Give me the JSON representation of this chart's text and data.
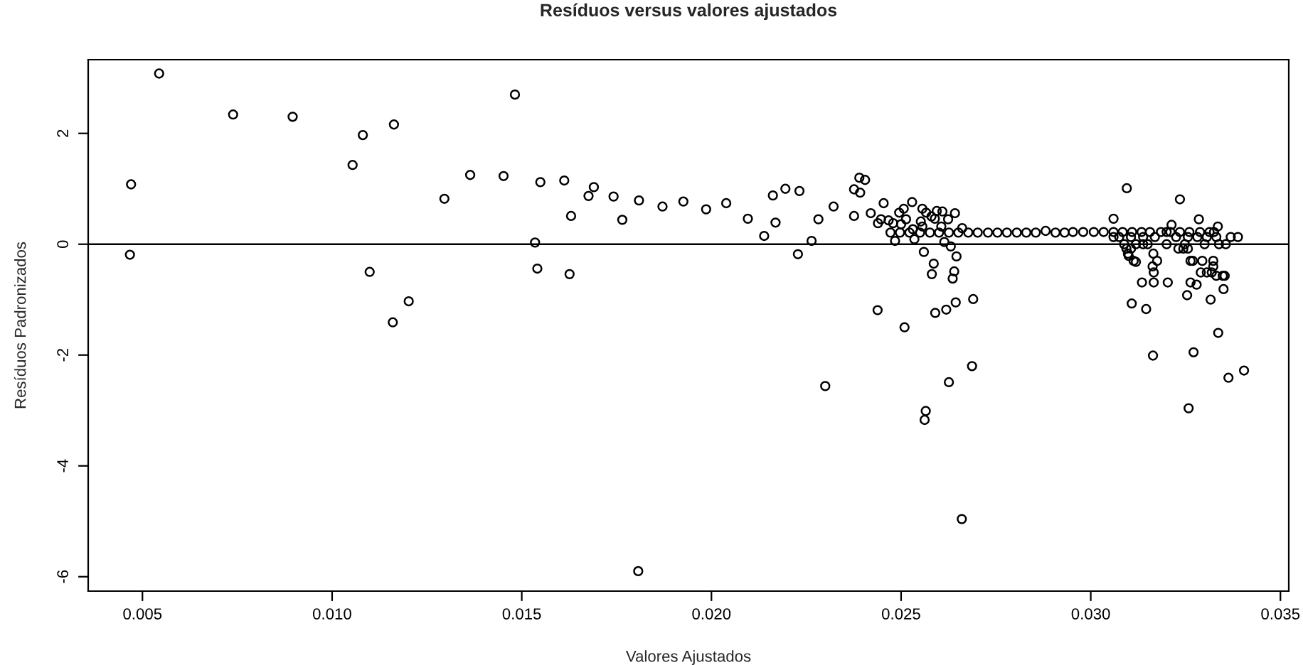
{
  "chart_data": {
    "type": "scatter",
    "title": "Resíduos versus valores ajustados",
    "xlabel": "Valores Ajustados",
    "ylabel": "Resíduos Padronizados",
    "color": "#000000",
    "marker": "circle",
    "grid": false,
    "x": [
      0.00544,
      0.0047,
      0.00467,
      0.00739,
      0.00896,
      0.01081,
      0.01054,
      0.01163,
      0.01099,
      0.01202,
      0.0116,
      0.01296,
      0.01364,
      0.01452,
      0.01482,
      0.01549,
      0.01535,
      0.01541,
      0.01612,
      0.0163,
      0.01626,
      0.01676,
      0.0169,
      0.01742,
      0.01765,
      0.01809,
      0.01807,
      0.01871,
      0.01926,
      0.01986,
      0.02039,
      0.02096,
      0.02139,
      0.02162,
      0.02169,
      0.02195,
      0.02232,
      0.02228,
      0.02264,
      0.02282,
      0.023,
      0.02322,
      0.02376,
      0.0239,
      0.02405,
      0.02392,
      0.02376,
      0.0242,
      0.02454,
      0.02438,
      0.02439,
      0.02447,
      0.02467,
      0.02479,
      0.02472,
      0.02484,
      0.02495,
      0.02507,
      0.025,
      0.02513,
      0.02497,
      0.02509,
      0.02529,
      0.02522,
      0.02531,
      0.02535,
      0.0255,
      0.02552,
      0.02556,
      0.02556,
      0.02566,
      0.02576,
      0.0258,
      0.02589,
      0.02594,
      0.02609,
      0.02606,
      0.026,
      0.02624,
      0.02642,
      0.02626,
      0.02614,
      0.02631,
      0.0256,
      0.02646,
      0.02586,
      0.02581,
      0.0264,
      0.02636,
      0.02661,
      0.02651,
      0.02677,
      0.02702,
      0.02729,
      0.02754,
      0.02779,
      0.02805,
      0.0283,
      0.02855,
      0.02881,
      0.02907,
      0.02931,
      0.0269,
      0.02644,
      0.02619,
      0.0259,
      0.02687,
      0.02626,
      0.02565,
      0.02562,
      0.0266,
      0.02953,
      0.0298,
      0.03008,
      0.03034,
      0.0306,
      0.03084,
      0.03109,
      0.03134,
      0.03156,
      0.03185,
      0.0321,
      0.03235,
      0.0326,
      0.03288,
      0.03313,
      0.032,
      0.03325,
      0.0306,
      0.03075,
      0.03106,
      0.03138,
      0.03169,
      0.03225,
      0.03256,
      0.03281,
      0.03306,
      0.03331,
      0.03369,
      0.03388,
      0.03088,
      0.03119,
      0.03138,
      0.0315,
      0.032,
      0.03248,
      0.033,
      0.03338,
      0.03356,
      0.03094,
      0.03106,
      0.03231,
      0.03244,
      0.03256,
      0.03098,
      0.03165,
      0.031,
      0.03113,
      0.03175,
      0.03263,
      0.03269,
      0.03294,
      0.03323,
      0.03119,
      0.03163,
      0.03323,
      0.03166,
      0.0329,
      0.03306,
      0.03319,
      0.03331,
      0.03348,
      0.03353,
      0.03135,
      0.03203,
      0.03166,
      0.03263,
      0.03279,
      0.0335,
      0.03254,
      0.03316,
      0.03108,
      0.03146,
      0.03336,
      0.03271,
      0.03164,
      0.03404,
      0.03363,
      0.03258,
      0.03213,
      0.03285,
      0.03335,
      0.03095,
      0.0306,
      0.03235
    ],
    "values": [
      3.08,
      1.08,
      -0.19,
      2.34,
      2.3,
      1.97,
      1.43,
      2.16,
      -0.5,
      -1.03,
      -1.41,
      0.82,
      1.25,
      1.23,
      2.7,
      1.12,
      0.03,
      -0.44,
      1.15,
      0.51,
      -0.54,
      0.87,
      1.03,
      0.86,
      0.44,
      0.79,
      -5.9,
      0.68,
      0.77,
      0.63,
      0.74,
      0.46,
      0.15,
      0.88,
      0.39,
      1.0,
      0.96,
      -0.18,
      0.06,
      0.45,
      -2.56,
      0.68,
      0.99,
      1.2,
      1.16,
      0.93,
      0.51,
      0.56,
      0.74,
      -1.19,
      0.38,
      0.45,
      0.43,
      0.38,
      0.21,
      0.06,
      0.57,
      0.64,
      0.36,
      0.45,
      0.21,
      -1.5,
      0.76,
      0.21,
      0.27,
      0.09,
      0.21,
      0.41,
      0.64,
      0.32,
      0.57,
      0.21,
      0.5,
      0.46,
      0.6,
      0.59,
      0.32,
      0.21,
      0.45,
      0.56,
      0.21,
      0.04,
      -0.04,
      -0.14,
      -0.22,
      -0.35,
      -0.54,
      -0.49,
      -0.62,
      0.29,
      0.21,
      0.21,
      0.21,
      0.21,
      0.21,
      0.21,
      0.21,
      0.21,
      0.21,
      0.24,
      0.21,
      0.21,
      -0.99,
      -1.05,
      -1.18,
      -1.24,
      -2.2,
      -2.49,
      -3.01,
      -3.17,
      -4.96,
      0.22,
      0.22,
      0.22,
      0.22,
      0.22,
      0.22,
      0.22,
      0.22,
      0.22,
      0.22,
      0.22,
      0.22,
      0.22,
      0.22,
      0.22,
      0.22,
      0.22,
      0.13,
      0.13,
      0.13,
      0.13,
      0.13,
      0.13,
      0.13,
      0.13,
      0.13,
      0.13,
      0.13,
      0.13,
      0.0,
      0.0,
      0.0,
      0.0,
      0.0,
      0.0,
      0.0,
      0.0,
      0.0,
      -0.08,
      -0.08,
      -0.08,
      -0.08,
      -0.08,
      -0.17,
      -0.17,
      -0.21,
      -0.3,
      -0.3,
      -0.3,
      -0.3,
      -0.3,
      -0.3,
      -0.32,
      -0.4,
      -0.4,
      -0.51,
      -0.51,
      -0.51,
      -0.51,
      -0.57,
      -0.57,
      -0.57,
      -0.69,
      -0.69,
      -0.69,
      -0.69,
      -0.73,
      -0.81,
      -0.92,
      -1.0,
      -1.07,
      -1.17,
      -1.6,
      -1.95,
      -2.01,
      -2.28,
      -2.41,
      -2.96,
      0.35,
      0.45,
      0.32,
      1.01,
      0.46,
      0.81
    ],
    "xlim": [
      0.00357,
      0.03522
    ],
    "ylim": [
      -6.26,
      3.33
    ],
    "xticks": [
      0.005,
      {
        "value": 0.01,
        "label": "0.010"
      },
      0.015,
      {
        "value": 0.02,
        "label": "0.020"
      },
      0.025,
      {
        "value": 0.03,
        "label": "0.030"
      },
      0.035
    ],
    "yticks": [
      -6,
      -4,
      -2,
      0,
      2
    ],
    "ref_lines": [
      {
        "axis": "y",
        "value": 0,
        "color": "#000000"
      }
    ]
  }
}
